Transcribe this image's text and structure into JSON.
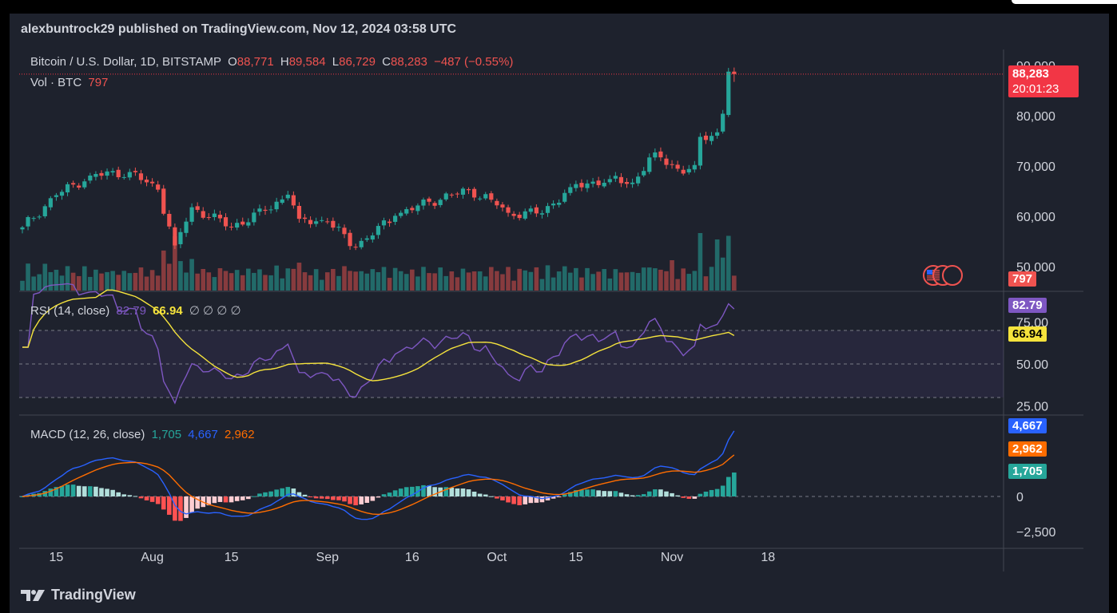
{
  "header": {
    "published": "alexbuntrock29 published on TradingView.com, Nov 12, 2024 03:58 UTC"
  },
  "footer": {
    "brand": "TradingView",
    "logo_icon": "tradingview-logo-icon"
  },
  "symbol": {
    "name": "Bitcoin / U.S. Dollar, 1D, BITSTAMP",
    "o_label": "O",
    "o": "88,771",
    "h_label": "H",
    "h": "89,584",
    "l_label": "L",
    "l": "86,729",
    "c_label": "C",
    "c": "88,283",
    "change": "−487 (−0.55%)"
  },
  "volume": {
    "label": "Vol · BTC",
    "value": "797"
  },
  "rsi_legend": {
    "label": "RSI (14, close)",
    "rsi": "82.79",
    "ma": "66.94",
    "extra": "∅ ∅ ∅ ∅"
  },
  "macd_legend": {
    "label": "MACD (12, 26, close)",
    "hist": "1,705",
    "macd": "4,667",
    "signal": "2,962"
  },
  "tags": {
    "price": "88,283",
    "countdown": "20:01:23",
    "volume": "797",
    "rsi": "82.79",
    "rsi_ma": "66.94",
    "macd": "4,667",
    "signal": "2,962",
    "hist": "1,705"
  },
  "colors": {
    "up": "#26a69a",
    "down": "#ef5350",
    "rsi": "#7e57c2",
    "rsi_ma": "#f5e33c",
    "macd": "#2962ff",
    "signal": "#ff6d00",
    "background": "#1e222d"
  },
  "chart_data": [
    {
      "type": "candlestick",
      "title": "Bitcoin / U.S. Dollar, 1D, BITSTAMP",
      "x_ticks": [
        "15",
        "Aug",
        "15",
        "Sep",
        "16",
        "Oct",
        "15",
        "Nov",
        "18"
      ],
      "y_ticks": [
        "90,000",
        "80,000",
        "70,000",
        "60,000",
        "50,000"
      ],
      "ylim": [
        45000,
        92000
      ],
      "close_anchors": [
        [
          "2024-07-09",
          57800
        ],
        [
          "2024-07-15",
          64200
        ],
        [
          "2024-07-21",
          68100
        ],
        [
          "2024-07-28",
          68800
        ],
        [
          "2024-08-02",
          65300
        ],
        [
          "2024-08-05",
          54200
        ],
        [
          "2024-08-08",
          61800
        ],
        [
          "2024-08-15",
          57900
        ],
        [
          "2024-08-21",
          61100
        ],
        [
          "2024-08-25",
          64300
        ],
        [
          "2024-08-27",
          59500
        ],
        [
          "2024-09-01",
          58900
        ],
        [
          "2024-09-06",
          53900
        ],
        [
          "2024-09-13",
          60100
        ],
        [
          "2024-09-19",
          62900
        ],
        [
          "2024-09-26",
          65200
        ],
        [
          "2024-09-30",
          63300
        ],
        [
          "2024-10-03",
          60700
        ],
        [
          "2024-10-09",
          60600
        ],
        [
          "2024-10-14",
          65800
        ],
        [
          "2024-10-21",
          67400
        ],
        [
          "2024-10-25",
          66700
        ],
        [
          "2024-10-29",
          72700
        ],
        [
          "2024-11-03",
          68500
        ],
        [
          "2024-11-05",
          70200
        ],
        [
          "2024-11-06",
          75800
        ],
        [
          "2024-11-09",
          76700
        ],
        [
          "2024-11-10",
          80400
        ],
        [
          "2024-11-11",
          88771
        ],
        [
          "2024-11-12",
          88283
        ]
      ],
      "last_candle": {
        "open": 88771,
        "high": 89584,
        "low": 86729,
        "close": 88283
      },
      "volume_last": 797
    },
    {
      "type": "line",
      "title": "RSI (14, close)",
      "y_ticks": [
        "75.00",
        "50.00",
        "25.00"
      ],
      "ylim": [
        20,
        90
      ],
      "bands": [
        70,
        50,
        30
      ],
      "series": [
        {
          "name": "RSI",
          "last": 82.79
        },
        {
          "name": "RSI MA",
          "last": 66.94
        }
      ]
    },
    {
      "type": "line",
      "title": "MACD (12, 26, close)",
      "y_ticks": [
        "0",
        "−2,500"
      ],
      "ylim": [
        -3500,
        6000
      ],
      "series": [
        {
          "name": "Histogram",
          "last": 1705
        },
        {
          "name": "MACD",
          "last": 4667
        },
        {
          "name": "Signal",
          "last": 2962
        }
      ]
    }
  ]
}
